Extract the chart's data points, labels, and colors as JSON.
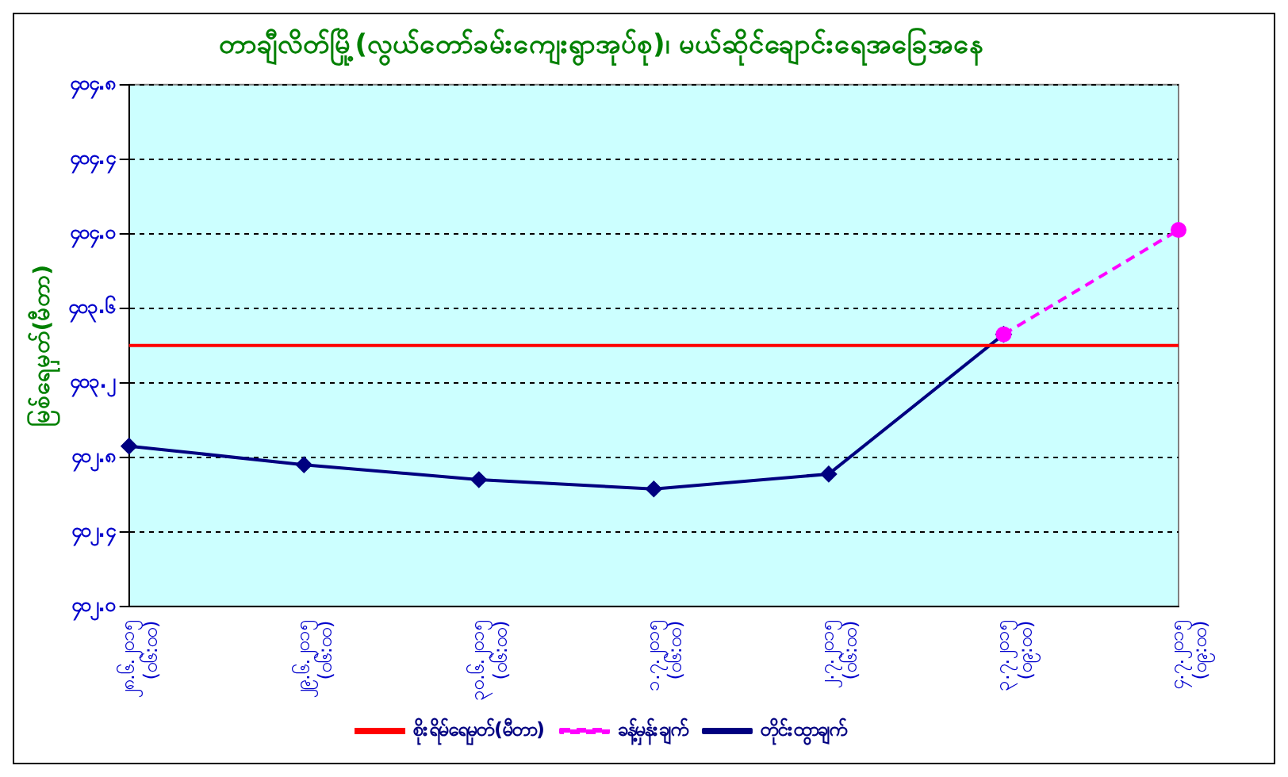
{
  "chart_data": {
    "type": "line",
    "title": "တာချီလိတ်မြို့(လွယ်တော်ခမ်းကျေးရွာအုပ်စု)၊ မယ်ဆိုင်ချောင်းရေအခြေအနေ",
    "ylabel": "မြစ်ရေမှတ်(မီတာ)",
    "categories": [
      "၂၈.၆.၂၀၁၅\n(၀၆:၀၀)",
      "၂၉.၆.၂၀၁၅\n(၀၆:၀၀)",
      "၃၀.၆.၂၀၁၅\n(၀၆:၀၀)",
      "၁.၇.၂၀၁၅\n(၀၆:၀၀)",
      "၂.၇.၂၀၁၅\n(၀၆:၀၀)",
      "၃.၇.၂၀၁၅\n(၀၉:၀၀)",
      "၄.၇.၂၀၁၅\n(၀၉:၀၀)"
    ],
    "series": [
      {
        "name": "တိုင်းထွာချက်",
        "color": "#000080",
        "values": [
          402.86,
          402.76,
          402.68,
          402.63,
          402.71,
          403.46,
          null
        ],
        "marker": "diamond",
        "line_style": "solid"
      },
      {
        "name": "ခန့်မှန်းချက်",
        "color": "#ff00ff",
        "values": [
          null,
          null,
          null,
          null,
          null,
          403.46,
          404.02
        ],
        "marker": "circle",
        "line_style": "dashed"
      }
    ],
    "ref_lines": [
      {
        "axis": "y",
        "value": 403.4,
        "label": "စိုးရိမ်ရေမှတ်(မီတာ)",
        "color": "#ff0000"
      }
    ],
    "ylim": [
      402.0,
      404.8
    ],
    "yticks": [
      {
        "value": 402.0,
        "label": "၄၀၂.၀"
      },
      {
        "value": 402.4,
        "label": "၄၀၂.၄"
      },
      {
        "value": 402.8,
        "label": "၄၀၂.၈"
      },
      {
        "value": 403.2,
        "label": "၄၀၃.၂"
      },
      {
        "value": 403.6,
        "label": "၄၀၃.၆"
      },
      {
        "value": 404.0,
        "label": "၄၀၄.၀"
      },
      {
        "value": 404.4,
        "label": "၄၀၄.၄"
      },
      {
        "value": 404.8,
        "label": "၄၀၄.၈"
      }
    ],
    "grid": "y",
    "legend": "bottom"
  }
}
